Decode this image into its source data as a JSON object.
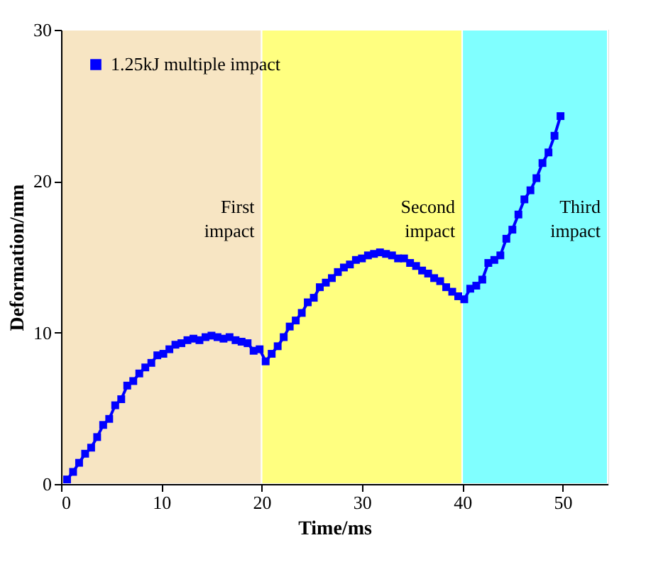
{
  "chart_data": {
    "type": "line",
    "xlabel": "Time/ms",
    "ylabel": "Deformation/mm",
    "x": [
      0.6,
      1.2,
      1.8,
      2.4,
      3.0,
      3.6,
      4.2,
      4.8,
      5.4,
      6.0,
      6.6,
      7.2,
      7.8,
      8.4,
      9.0,
      9.6,
      10.2,
      10.8,
      11.4,
      12.0,
      12.6,
      13.2,
      13.8,
      14.4,
      15.0,
      15.6,
      16.2,
      16.8,
      17.4,
      18.0,
      18.6,
      19.2,
      19.8,
      20.4,
      21.0,
      21.6,
      22.2,
      22.8,
      23.4,
      24.0,
      24.6,
      25.2,
      25.8,
      26.4,
      27.0,
      27.6,
      28.2,
      28.8,
      29.4,
      30.0,
      30.6,
      31.2,
      31.8,
      32.4,
      33.0,
      33.6,
      34.2,
      34.8,
      35.4,
      36.0,
      36.6,
      37.2,
      37.8,
      38.4,
      39.0,
      39.6,
      40.2,
      40.8,
      41.4,
      42.0,
      42.6,
      43.2,
      43.8,
      44.4,
      45.0,
      45.6,
      46.2,
      46.8,
      47.4,
      48.0,
      48.6,
      49.2,
      49.8
    ],
    "series": [
      {
        "name": "1.25kJ multiple impact",
        "color": "#0000ff",
        "marker": "square",
        "line_style": "solid",
        "values": [
          0.3,
          0.8,
          1.4,
          2.0,
          2.4,
          3.1,
          3.9,
          4.3,
          5.2,
          5.6,
          6.5,
          6.8,
          7.3,
          7.7,
          8.0,
          8.5,
          8.6,
          8.9,
          9.2,
          9.3,
          9.5,
          9.6,
          9.5,
          9.7,
          9.8,
          9.7,
          9.6,
          9.7,
          9.5,
          9.4,
          9.3,
          8.8,
          8.9,
          8.1,
          8.6,
          9.1,
          9.7,
          10.4,
          10.8,
          11.3,
          12.0,
          12.3,
          13.0,
          13.3,
          13.6,
          14.0,
          14.3,
          14.5,
          14.8,
          14.9,
          15.1,
          15.2,
          15.3,
          15.2,
          15.1,
          14.9,
          14.9,
          14.6,
          14.4,
          14.1,
          13.9,
          13.6,
          13.4,
          13.0,
          12.7,
          12.4,
          12.2,
          12.9,
          13.1,
          13.5,
          14.6,
          14.8,
          15.1,
          16.2,
          16.8,
          17.8,
          18.8,
          19.4,
          20.2,
          21.2,
          21.9,
          23.0,
          24.3
        ]
      }
    ],
    "xlim": [
      0,
      54.5
    ],
    "ylim": [
      0,
      30
    ],
    "xticks": [
      0,
      10,
      20,
      30,
      40,
      50
    ],
    "yticks": [
      0,
      10,
      20,
      30
    ],
    "bands": [
      {
        "axis": "x",
        "from": 0,
        "to": 20,
        "label": "First\nimpact",
        "color": "#f7e5c3"
      },
      {
        "axis": "x",
        "from": 20,
        "to": 40,
        "label": "Second\nimpact",
        "color": "#ffff80"
      },
      {
        "axis": "x",
        "from": 40,
        "to": 54.5,
        "label": "Third\nimpact",
        "color": "#80ffff"
      }
    ],
    "grid": false,
    "legend": "top left"
  }
}
